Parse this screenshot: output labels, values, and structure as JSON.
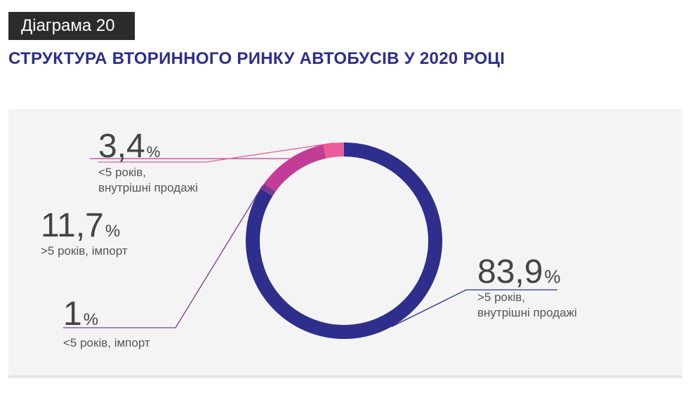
{
  "header": {
    "badge": "Діаграма 20",
    "title": "СТРУКТУРА ВТОРИННОГО РИНКУ АВТОБУСІВ У 2020 РОЦІ"
  },
  "chart_data": {
    "type": "pie",
    "variant": "donut",
    "start": "top",
    "direction": "clockwise",
    "slices": [
      {
        "label": ">5 років,\nвнутрішні продажі",
        "value": 83.9,
        "display": "83,9",
        "unit": "%",
        "color": "#2e2e8c"
      },
      {
        "label": "<5 років, імпорт",
        "value": 1.0,
        "display": "1",
        "unit": "%",
        "color": "#7a3a8f"
      },
      {
        "label": ">5 років, імпорт",
        "value": 11.7,
        "display": "11,7",
        "unit": "%",
        "color": "#c23c96"
      },
      {
        "label": "<5 років,\nвнутрішні продажі",
        "value": 3.4,
        "display": "3,4",
        "unit": "%",
        "color": "#e85d9a"
      }
    ]
  }
}
